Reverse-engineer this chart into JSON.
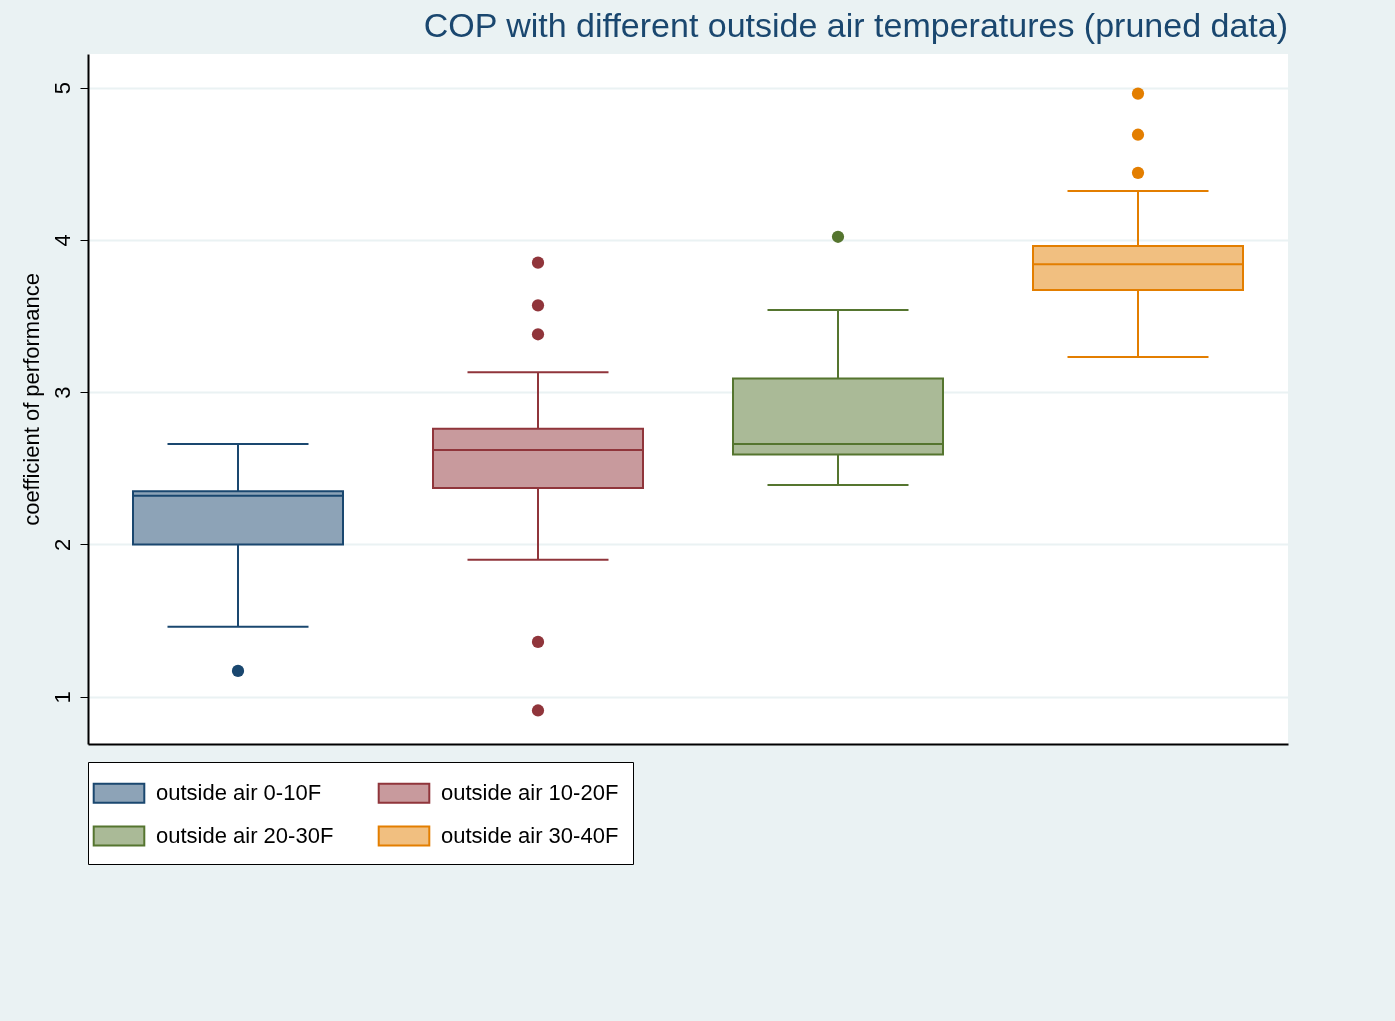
{
  "chart_data": {
    "type": "box",
    "title": "COP with different outside air temperatures (pruned data)",
    "ylabel": "coefficient of performance",
    "categories": [
      null,
      null,
      null,
      null
    ],
    "ylim": [
      0.69,
      5.22
    ],
    "yticks": [
      1,
      2,
      3,
      4,
      5
    ],
    "grid": "y",
    "legend": "bottom",
    "tick_labels": "y",
    "marker": "circle",
    "series": [
      {
        "name": "outside air 0-10F",
        "color": "#1a476f",
        "boxes": [
          {
            "low": 1.46,
            "q1": 2.0,
            "median": 2.32,
            "q3": 2.35,
            "high": 2.66,
            "outliers": [
              1.17
            ]
          },
          null,
          null,
          null
        ]
      },
      {
        "name": "outside air 10-20F",
        "color": "#90353b",
        "boxes": [
          null,
          {
            "low": 1.9,
            "q1": 2.37,
            "median": 2.62,
            "q3": 2.76,
            "high": 3.13,
            "outliers": [
              3.85,
              3.57,
              3.38,
              1.36,
              0.91
            ]
          },
          null,
          null
        ]
      },
      {
        "name": "outside air 20-30F",
        "color": "#55752f",
        "boxes": [
          null,
          null,
          {
            "low": 2.39,
            "q1": 2.59,
            "median": 2.66,
            "q3": 3.09,
            "high": 3.54,
            "outliers": [
              4.02
            ]
          },
          null
        ]
      },
      {
        "name": "outside air 30-40F",
        "color": "#e37e00",
        "boxes": [
          null,
          null,
          null,
          {
            "low": 3.23,
            "q1": 3.67,
            "median": 3.84,
            "q3": 3.96,
            "high": 4.32,
            "outliers": [
              4.96,
              4.69,
              4.44
            ]
          }
        ]
      }
    ]
  }
}
